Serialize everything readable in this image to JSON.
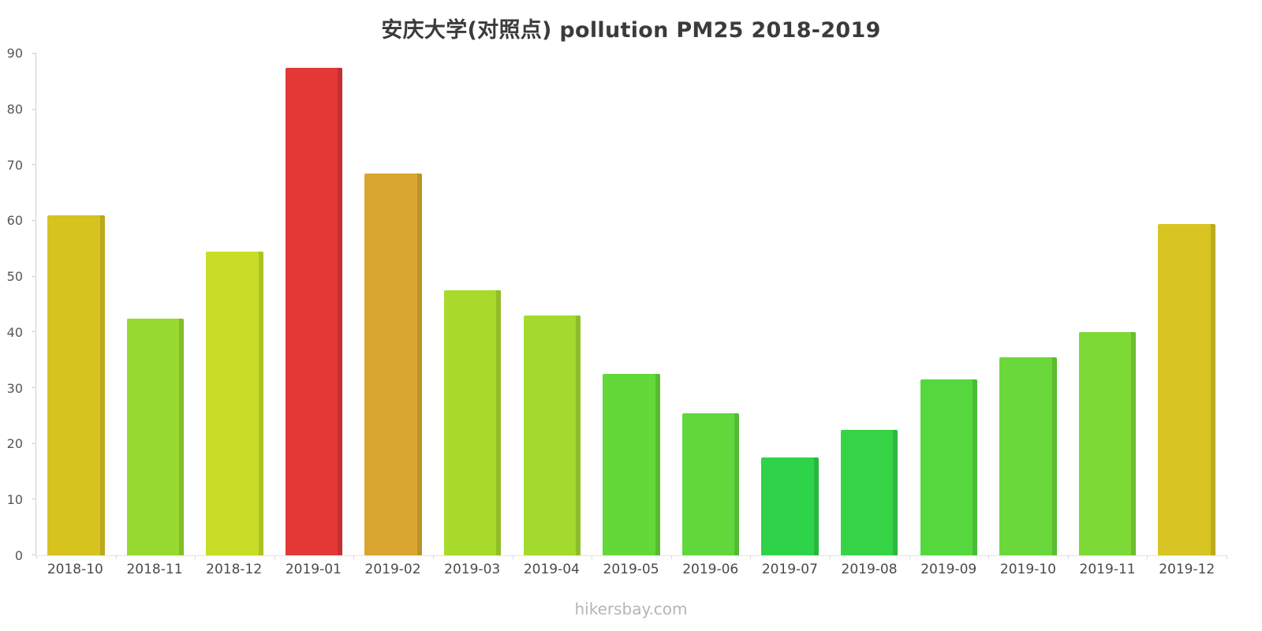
{
  "page": {
    "title": "安庆大学(对照点) pollution PM25 2018-2019",
    "footer": "hikersbay.com"
  },
  "chart_data": {
    "type": "bar",
    "title": "安庆大学(对照点) pollution PM25 2018-2019",
    "categories": [
      "2018-10",
      "2018-11",
      "2018-12",
      "2019-01",
      "2019-02",
      "2019-03",
      "2019-04",
      "2019-05",
      "2019-06",
      "2019-07",
      "2019-08",
      "2019-09",
      "2019-10",
      "2019-11",
      "2019-12"
    ],
    "values": [
      61,
      42.5,
      54.5,
      87.5,
      68.5,
      47.5,
      43,
      32.5,
      25.5,
      17.5,
      22.5,
      31.5,
      35.5,
      40,
      59.5
    ],
    "colors": [
      "#d6c31f",
      "#97d92e",
      "#c8dd28",
      "#e23836",
      "#d9a630",
      "#a8da2c",
      "#a4da2e",
      "#64d838",
      "#60d83c",
      "#2fd34a",
      "#35d447",
      "#55d73e",
      "#6ad83a",
      "#7cd936",
      "#d8c524"
    ],
    "xlabel": "",
    "ylabel": "",
    "ylim": [
      0,
      90
    ],
    "y_ticks": [
      0,
      10,
      20,
      30,
      40,
      50,
      60,
      70,
      80,
      90
    ],
    "grid": false,
    "legend": "none"
  }
}
